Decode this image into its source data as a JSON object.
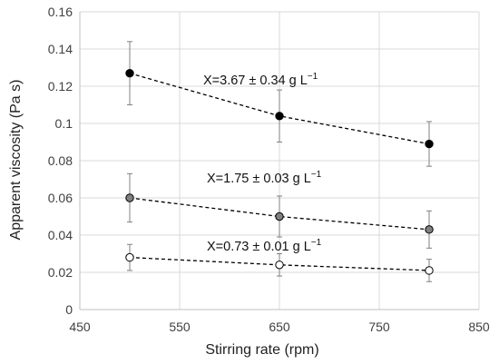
{
  "chart_data": {
    "type": "scatter",
    "xlabel": "Stirring rate (rpm)",
    "ylabel": "Apparent viscosity  (Pa s)",
    "xlim": [
      450,
      850
    ],
    "ylim": [
      0,
      0.16
    ],
    "x_ticks": [
      "450",
      "550",
      "650",
      "750",
      "850"
    ],
    "y_ticks": [
      "0",
      "0.02",
      "0.04",
      "0.06",
      "0.08",
      "0.1",
      "0.12",
      "0.14",
      "0.16"
    ],
    "grid": true,
    "line_style": "dashed",
    "series": [
      {
        "name": "X=3.67 ± 0.34 g L",
        "name_sup": "−1",
        "marker_fill": "#000000",
        "x": [
          500,
          650,
          800
        ],
        "y": [
          0.127,
          0.104,
          0.089
        ],
        "err": [
          0.017,
          0.014,
          0.012
        ]
      },
      {
        "name": "X=1.75 ± 0.03 g L",
        "name_sup": "−1",
        "marker_fill": "#808080",
        "x": [
          500,
          650,
          800
        ],
        "y": [
          0.06,
          0.05,
          0.043
        ],
        "err": [
          0.013,
          0.011,
          0.01
        ]
      },
      {
        "name": "X=0.73 ± 0.01 g L",
        "name_sup": "−1",
        "marker_fill": "#ffffff",
        "x": [
          500,
          650,
          800
        ],
        "y": [
          0.028,
          0.024,
          0.021
        ],
        "err": [
          0.007,
          0.006,
          0.006
        ]
      }
    ]
  }
}
